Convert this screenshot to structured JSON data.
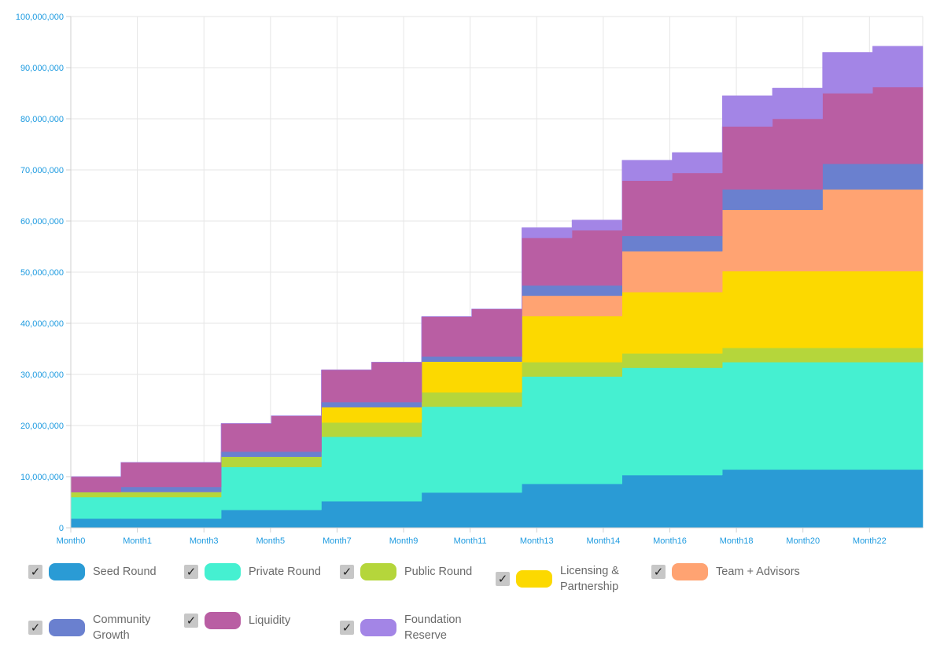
{
  "chart_data": {
    "type": "area",
    "step": true,
    "stacked": true,
    "y_tick_labels": [
      "0",
      "10,000,000",
      "20,000,000",
      "30,000,000",
      "40,000,000",
      "50,000,000",
      "60,000,000",
      "70,000,000",
      "80,000,000",
      "90,000,000",
      "100,000,000"
    ],
    "ylim": [
      0,
      100000000
    ],
    "x_tick_labels": [
      "Month0",
      "Month1",
      "Month3",
      "Month5",
      "Month7",
      "Month9",
      "Month11",
      "Month13",
      "Month14",
      "Month16",
      "Month18",
      "Month20",
      "Month22"
    ],
    "series": [
      {
        "name": "Seed Round",
        "color": "#2a9bd5",
        "values": [
          1.8,
          1.8,
          1.8,
          3.5,
          3.5,
          5.2,
          5.2,
          6.9,
          6.9,
          8.6,
          8.6,
          10.3,
          10.3,
          11.4,
          11.4,
          11.4,
          11.4
        ]
      },
      {
        "name": "Private Round",
        "color": "#45f0d1",
        "values": [
          4.2,
          4.2,
          4.2,
          8.4,
          8.4,
          12.6,
          12.6,
          16.8,
          16.8,
          21.0,
          21.0,
          21.0,
          21.0,
          21.0,
          21.0,
          21.0,
          21.0
        ]
      },
      {
        "name": "Public Round",
        "color": "#b5d63b",
        "values": [
          1.0,
          1.0,
          1.0,
          2.0,
          2.0,
          2.8,
          2.8,
          2.8,
          2.8,
          2.8,
          2.8,
          2.8,
          2.8,
          2.8,
          2.8,
          2.8,
          2.8
        ]
      },
      {
        "name": "Licensing & Partnership",
        "color": "#fcd900",
        "values": [
          0,
          0,
          0,
          0,
          0,
          3.0,
          3.0,
          6.0,
          6.0,
          9.0,
          9.0,
          12.0,
          12.0,
          15.0,
          15.0,
          15.0,
          15.0
        ]
      },
      {
        "name": "Team + Advisors",
        "color": "#ffa372",
        "values": [
          0,
          0,
          0,
          0,
          0,
          0,
          0,
          0,
          0,
          4.0,
          4.0,
          8.0,
          8.0,
          12.0,
          12.0,
          16.0,
          16.0
        ]
      },
      {
        "name": "Community Growth",
        "color": "#6a80cf",
        "values": [
          0,
          1.0,
          1.0,
          1.0,
          1.0,
          1.0,
          1.0,
          1.0,
          1.0,
          2.0,
          2.0,
          3.0,
          3.0,
          4.0,
          4.0,
          5.0,
          5.0
        ]
      },
      {
        "name": "Liquidity",
        "color": "#b95ea3",
        "values": [
          3.0,
          4.8,
          4.8,
          5.5,
          7.0,
          6.3,
          7.8,
          7.8,
          9.3,
          9.3,
          10.8,
          10.8,
          12.3,
          12.3,
          13.8,
          13.8,
          15.0
        ]
      },
      {
        "name": "Foundation Reserve",
        "color": "#a385e6",
        "values": [
          0,
          0,
          0,
          0,
          0,
          0,
          0,
          0,
          0,
          2.0,
          2.0,
          4.0,
          4.0,
          6.0,
          6.0,
          8.0,
          8.0
        ]
      }
    ],
    "unit_note": "values in millions of tokens per step segment"
  },
  "legend": {
    "check_mark": "✓",
    "items": [
      {
        "label": "Seed Round",
        "color": "#2a9bd5"
      },
      {
        "label": "Private Round",
        "color": "#45f0d1"
      },
      {
        "label": "Public Round",
        "color": "#b5d63b"
      },
      {
        "label": "Licensing & Partnership",
        "color": "#fcd900"
      },
      {
        "label": "Team + Advisors",
        "color": "#ffa372"
      },
      {
        "label": "Community Growth",
        "color": "#6a80cf"
      },
      {
        "label": "Liquidity",
        "color": "#b95ea3"
      },
      {
        "label": "Foundation Reserve",
        "color": "#a385e6"
      }
    ]
  }
}
